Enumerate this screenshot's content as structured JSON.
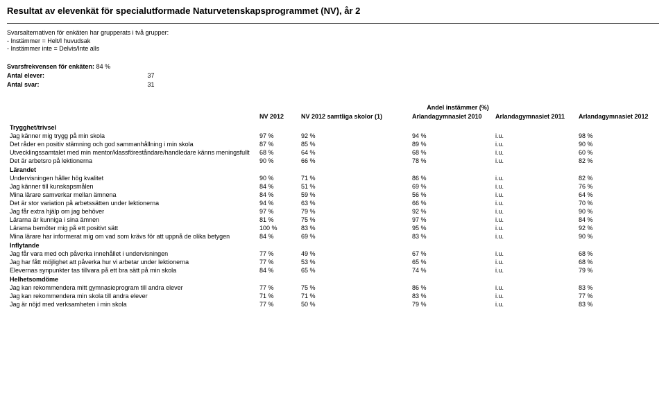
{
  "title": "Resultat av elevenkät för specialutformade Naturvetenskapsprogrammet (NV), år 2",
  "intro": {
    "line1": "Svarsalternativen för enkäten har grupperats i två grupper:",
    "line2": "- Instämmer = Helt/I huvudsak",
    "line3": "- Instämmer inte = Delvis/Inte alls"
  },
  "stats": {
    "freq_label": "Svarsfrekvensen för enkäten:",
    "freq_value": "84 %",
    "students_label": "Antal elever:",
    "students_value": "37",
    "answers_label": "Antal svar:",
    "answers_value": "31"
  },
  "table_meta": {
    "super_header": "Andel instämmer (%)",
    "columns": {
      "c1": "NV 2012",
      "c2": "NV 2012 samtliga skolor (1)",
      "c3": "Arlandagymnasiet 2010",
      "c4": "Arlandagymnasiet 2011",
      "c5": "Arlandagymnasiet 2012"
    }
  },
  "sections": {
    "s1": "Trygghet/trivsel",
    "s2": "Lärandet",
    "s3": "Inflytande",
    "s4": "Helhetsomdöme"
  },
  "rows": {
    "r1": {
      "label": "Jag känner mig trygg på min skola",
      "v": [
        "97 %",
        "92 %",
        "94 %",
        "i.u.",
        "98 %"
      ]
    },
    "r2": {
      "label": "Det råder en positiv stämning och god sammanhållning i min skola",
      "v": [
        "87 %",
        "85 %",
        "89 %",
        "i.u.",
        "90 %"
      ]
    },
    "r3": {
      "label": "Utvecklingssamtalet med min mentor/klassföreståndare/handledare känns meningsfullt",
      "v": [
        "68 %",
        "64 %",
        "68 %",
        "i.u.",
        "60 %"
      ]
    },
    "r4": {
      "label": "Det är arbetsro på lektionerna",
      "v": [
        "90 %",
        "66 %",
        "78 %",
        "i.u.",
        "82 %"
      ]
    },
    "r5": {
      "label": "Undervisningen håller hög kvalitet",
      "v": [
        "90 %",
        "71 %",
        "86 %",
        "i.u.",
        "82 %"
      ]
    },
    "r6": {
      "label": "Jag känner till kunskapsmålen",
      "v": [
        "84 %",
        "51 %",
        "69 %",
        "i.u.",
        "76 %"
      ]
    },
    "r7": {
      "label": "Mina lärare samverkar mellan ämnena",
      "v": [
        "84 %",
        "59 %",
        "56 %",
        "i.u.",
        "64 %"
      ]
    },
    "r8": {
      "label": "Det är stor variation på arbetssätten under lektionerna",
      "v": [
        "94 %",
        "63 %",
        "66 %",
        "i.u.",
        "70 %"
      ]
    },
    "r9": {
      "label": "Jag får extra hjälp om jag behöver",
      "v": [
        "97 %",
        "79 %",
        "92 %",
        "i.u.",
        "90 %"
      ]
    },
    "r10": {
      "label": "Lärarna är kunniga i sina ämnen",
      "v": [
        "81 %",
        "75 %",
        "97 %",
        "i.u.",
        "84 %"
      ]
    },
    "r11": {
      "label": "Lärarna bemöter mig på ett positivt sätt",
      "v": [
        "100 %",
        "83 %",
        "95 %",
        "i.u.",
        "92 %"
      ]
    },
    "r12": {
      "label": "Mina lärare har informerat mig om vad som krävs för att uppnå de olika betygen",
      "v": [
        "84 %",
        "69 %",
        "83 %",
        "i.u.",
        "90 %"
      ]
    },
    "r13": {
      "label": "Jag får vara med och påverka innehållet i undervisningen",
      "v": [
        "77 %",
        "49 %",
        "67 %",
        "i.u.",
        "68 %"
      ]
    },
    "r14": {
      "label": "Jag har fått möjlighet att påverka hur vi arbetar under lektionerna",
      "v": [
        "77 %",
        "53 %",
        "65 %",
        "i.u.",
        "68 %"
      ]
    },
    "r15": {
      "label": "Elevernas synpunkter tas tillvara på ett bra sätt på min skola",
      "v": [
        "84 %",
        "65 %",
        "74 %",
        "i.u.",
        "79 %"
      ]
    },
    "r16": {
      "label": "Jag kan rekommendera mitt gymnasieprogram till andra elever",
      "v": [
        "77 %",
        "75 %",
        "86 %",
        "i.u.",
        "83 %"
      ]
    },
    "r17": {
      "label": "Jag kan rekommendera min skola till andra elever",
      "v": [
        "71 %",
        "71 %",
        "83 %",
        "i.u.",
        "77 %"
      ]
    },
    "r18": {
      "label": "Jag är nöjd med verksamheten i min skola",
      "v": [
        "77 %",
        "50 %",
        "79 %",
        "i.u.",
        "83 %"
      ]
    }
  }
}
